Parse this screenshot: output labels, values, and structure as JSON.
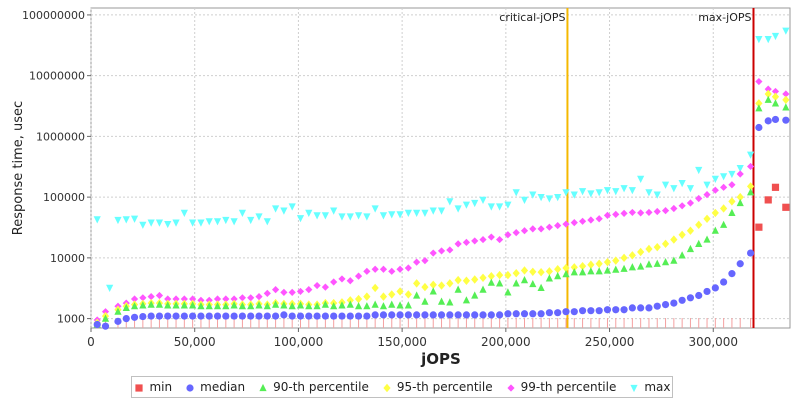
{
  "chart_data": {
    "type": "scatter",
    "xlabel": "jOPS",
    "ylabel": "Response time, usec",
    "xlim": [
      0,
      337000
    ],
    "ylim": [
      700,
      130000000
    ],
    "yscale": "log",
    "x_ticks": [
      0,
      50000,
      100000,
      150000,
      200000,
      250000,
      300000
    ],
    "x_tick_labels": [
      "0",
      "50,000",
      "100,000",
      "150,000",
      "200,000",
      "250,000",
      "300,000"
    ],
    "y_ticks": [
      1000,
      10000,
      100000,
      1000000,
      10000000,
      100000000
    ],
    "y_tick_labels": [
      "1000",
      "10000",
      "100000",
      "1000000",
      "10000000",
      "100000000"
    ],
    "grid": true,
    "legend_position": "bottom",
    "vlines": [
      {
        "label": "critical-jOPS",
        "x": 229700,
        "color": "#f5b800"
      },
      {
        "label": "max-jOPS",
        "x": 319400,
        "color": "#cc0000"
      }
    ],
    "series": [
      {
        "name": "min",
        "marker": "square",
        "color": "#f05050",
        "x": [
          322000,
          326500,
          330000,
          335000
        ],
        "y": [
          32000,
          90000,
          145000,
          68000
        ]
      },
      {
        "name": "median",
        "marker": "circle",
        "color": "#6666ff",
        "x": [
          3000,
          7000,
          13000,
          17000,
          21000,
          25000,
          29000,
          33000,
          37000,
          41000,
          45000,
          49000,
          53000,
          57000,
          61000,
          65000,
          69000,
          73000,
          77000,
          81000,
          85000,
          89000,
          93000,
          97000,
          101000,
          105000,
          109000,
          113000,
          117000,
          121000,
          125000,
          129000,
          133000,
          137000,
          141000,
          145000,
          149000,
          153000,
          157000,
          161000,
          165000,
          169000,
          173000,
          177000,
          181000,
          185000,
          189000,
          193000,
          197000,
          201000,
          205000,
          209000,
          213000,
          217000,
          221000,
          225000,
          229000,
          233000,
          237000,
          241000,
          245000,
          249000,
          253000,
          257000,
          261000,
          265000,
          269000,
          273000,
          277000,
          281000,
          285000,
          289000,
          293000,
          297000,
          301000,
          305000,
          309000,
          313000,
          318000,
          322000,
          326500,
          330000,
          335000
        ],
        "y": [
          800,
          750,
          900,
          1000,
          1050,
          1080,
          1100,
          1100,
          1100,
          1100,
          1100,
          1100,
          1100,
          1100,
          1100,
          1100,
          1100,
          1100,
          1100,
          1100,
          1100,
          1100,
          1150,
          1100,
          1100,
          1100,
          1100,
          1100,
          1100,
          1100,
          1100,
          1100,
          1100,
          1150,
          1150,
          1150,
          1150,
          1150,
          1150,
          1150,
          1150,
          1150,
          1150,
          1150,
          1150,
          1150,
          1150,
          1150,
          1150,
          1200,
          1200,
          1200,
          1200,
          1200,
          1250,
          1250,
          1300,
          1300,
          1350,
          1350,
          1350,
          1400,
          1400,
          1400,
          1500,
          1500,
          1500,
          1600,
          1700,
          1800,
          2000,
          2200,
          2400,
          2800,
          3200,
          4000,
          5500,
          8000,
          12000,
          1400000,
          1800000,
          1900000,
          1850000
        ]
      },
      {
        "name": "90-th percentile",
        "marker": "triangle-up",
        "color": "#55ee55",
        "x": [
          3000,
          7000,
          13000,
          17000,
          21000,
          25000,
          29000,
          33000,
          37000,
          41000,
          45000,
          49000,
          53000,
          57000,
          61000,
          65000,
          69000,
          73000,
          77000,
          81000,
          85000,
          89000,
          93000,
          97000,
          101000,
          105000,
          109000,
          113000,
          117000,
          121000,
          125000,
          129000,
          133000,
          137000,
          141000,
          145000,
          149000,
          153000,
          157000,
          161000,
          165000,
          169000,
          173000,
          177000,
          181000,
          185000,
          189000,
          193000,
          197000,
          201000,
          205000,
          209000,
          213000,
          217000,
          221000,
          225000,
          229000,
          233000,
          237000,
          241000,
          245000,
          249000,
          253000,
          257000,
          261000,
          265000,
          269000,
          273000,
          277000,
          281000,
          285000,
          289000,
          293000,
          297000,
          301000,
          305000,
          309000,
          313000,
          318000,
          322000,
          326500,
          330000,
          335000
        ],
        "y": [
          800,
          1000,
          1300,
          1500,
          1600,
          1650,
          1700,
          1700,
          1650,
          1650,
          1650,
          1650,
          1600,
          1600,
          1600,
          1600,
          1650,
          1600,
          1600,
          1650,
          1600,
          1700,
          1650,
          1600,
          1650,
          1600,
          1600,
          1700,
          1600,
          1650,
          1700,
          1600,
          1600,
          1700,
          1600,
          1700,
          1650,
          1650,
          2400,
          1900,
          2800,
          1900,
          1850,
          3000,
          2000,
          2400,
          3000,
          3900,
          3800,
          2700,
          3800,
          4300,
          3700,
          3200,
          4600,
          5000,
          5400,
          5800,
          5800,
          6000,
          6000,
          6200,
          6400,
          6600,
          7000,
          7200,
          7800,
          8000,
          8500,
          9000,
          11000,
          14000,
          17000,
          20000,
          28000,
          35000,
          55000,
          80000,
          120000,
          2900000,
          4000000,
          3500000,
          3000000
        ]
      },
      {
        "name": "95-th percentile",
        "marker": "diamond",
        "color": "#ffff44",
        "x": [
          3000,
          7000,
          13000,
          17000,
          21000,
          25000,
          29000,
          33000,
          37000,
          41000,
          45000,
          49000,
          53000,
          57000,
          61000,
          65000,
          69000,
          73000,
          77000,
          81000,
          85000,
          89000,
          93000,
          97000,
          101000,
          105000,
          109000,
          113000,
          117000,
          121000,
          125000,
          129000,
          133000,
          137000,
          141000,
          145000,
          149000,
          153000,
          157000,
          161000,
          165000,
          169000,
          173000,
          177000,
          181000,
          185000,
          189000,
          193000,
          197000,
          201000,
          205000,
          209000,
          213000,
          217000,
          221000,
          225000,
          229000,
          233000,
          237000,
          241000,
          245000,
          249000,
          253000,
          257000,
          261000,
          265000,
          269000,
          273000,
          277000,
          281000,
          285000,
          289000,
          293000,
          297000,
          301000,
          305000,
          309000,
          313000,
          318000,
          322000,
          326500,
          330000,
          335000
        ],
        "y": [
          850,
          1100,
          1400,
          1600,
          1700,
          1750,
          1800,
          1800,
          1750,
          1750,
          1750,
          1750,
          1700,
          1700,
          1700,
          1700,
          1750,
          1700,
          1700,
          1750,
          1700,
          1800,
          1750,
          1750,
          1750,
          1700,
          1700,
          1800,
          1800,
          1850,
          2000,
          2100,
          2300,
          3200,
          2300,
          2500,
          2800,
          2500,
          3800,
          3300,
          3600,
          3500,
          3800,
          4300,
          4200,
          4400,
          4700,
          5000,
          5200,
          5200,
          5600,
          6200,
          5900,
          5800,
          6000,
          6500,
          6800,
          7000,
          7300,
          7700,
          8000,
          8500,
          9000,
          10000,
          11000,
          12500,
          14000,
          15000,
          17000,
          20000,
          24000,
          28000,
          35000,
          44000,
          55000,
          65000,
          85000,
          100000,
          150000,
          3500000,
          5000000,
          4500000,
          4000000
        ]
      },
      {
        "name": "99-th percentile",
        "marker": "square-rotated",
        "color": "#ff55ff",
        "x": [
          3000,
          7000,
          13000,
          17000,
          21000,
          25000,
          29000,
          33000,
          37000,
          41000,
          45000,
          49000,
          53000,
          57000,
          61000,
          65000,
          69000,
          73000,
          77000,
          81000,
          85000,
          89000,
          93000,
          97000,
          101000,
          105000,
          109000,
          113000,
          117000,
          121000,
          125000,
          129000,
          133000,
          137000,
          141000,
          145000,
          149000,
          153000,
          157000,
          161000,
          165000,
          169000,
          173000,
          177000,
          181000,
          185000,
          189000,
          193000,
          197000,
          201000,
          205000,
          209000,
          213000,
          217000,
          221000,
          225000,
          229000,
          233000,
          237000,
          241000,
          245000,
          249000,
          253000,
          257000,
          261000,
          265000,
          269000,
          273000,
          277000,
          281000,
          285000,
          289000,
          293000,
          297000,
          301000,
          305000,
          309000,
          313000,
          318000,
          322000,
          326500,
          330000,
          335000
        ],
        "y": [
          950,
          1300,
          1600,
          1800,
          2100,
          2200,
          2300,
          2400,
          2100,
          2100,
          2100,
          2100,
          2000,
          2000,
          2100,
          2100,
          2100,
          2200,
          2200,
          2300,
          2600,
          3000,
          2700,
          2700,
          2800,
          3000,
          3500,
          3300,
          4000,
          4500,
          4200,
          5000,
          6000,
          6500,
          6500,
          6000,
          6500,
          6800,
          8500,
          9000,
          12000,
          13000,
          13500,
          17000,
          18000,
          19000,
          20000,
          22000,
          20000,
          24000,
          26000,
          28000,
          30000,
          30000,
          32000,
          34000,
          36000,
          38000,
          40000,
          42000,
          44000,
          50000,
          52000,
          54000,
          56000,
          55000,
          56000,
          58000,
          60000,
          65000,
          72000,
          80000,
          95000,
          110000,
          130000,
          145000,
          160000,
          240000,
          320000,
          8000000,
          6000000,
          5500000,
          5000000
        ]
      },
      {
        "name": "max",
        "marker": "triangle-down",
        "color": "#66ffff",
        "x": [
          3000,
          9000,
          13000,
          17000,
          21000,
          25000,
          29000,
          33000,
          37000,
          41000,
          45000,
          49000,
          53000,
          57000,
          61000,
          65000,
          69000,
          73000,
          77000,
          81000,
          85000,
          89000,
          93000,
          97000,
          101000,
          105000,
          109000,
          113000,
          117000,
          121000,
          125000,
          129000,
          133000,
          137000,
          141000,
          145000,
          149000,
          153000,
          157000,
          161000,
          165000,
          169000,
          173000,
          177000,
          181000,
          185000,
          189000,
          193000,
          197000,
          201000,
          205000,
          209000,
          213000,
          217000,
          221000,
          225000,
          229000,
          233000,
          237000,
          241000,
          245000,
          249000,
          253000,
          257000,
          261000,
          265000,
          269000,
          273000,
          277000,
          281000,
          285000,
          289000,
          293000,
          297000,
          301000,
          305000,
          309000,
          313000,
          318000,
          322000,
          326500,
          330000,
          335000
        ],
        "y": [
          43000,
          3200,
          42000,
          43000,
          44000,
          35000,
          38000,
          38000,
          36000,
          38000,
          55000,
          38000,
          38000,
          40000,
          40000,
          42000,
          40000,
          55000,
          42000,
          48000,
          40000,
          65000,
          60000,
          70000,
          45000,
          55000,
          50000,
          50000,
          60000,
          48000,
          48000,
          50000,
          48000,
          65000,
          50000,
          52000,
          52000,
          55000,
          55000,
          55000,
          60000,
          60000,
          85000,
          65000,
          75000,
          80000,
          90000,
          70000,
          70000,
          75000,
          120000,
          90000,
          110000,
          100000,
          95000,
          100000,
          120000,
          110000,
          125000,
          115000,
          120000,
          130000,
          125000,
          140000,
          130000,
          200000,
          120000,
          110000,
          160000,
          140000,
          170000,
          140000,
          280000,
          160000,
          200000,
          220000,
          240000,
          300000,
          500000,
          40000000,
          40000000,
          45000000,
          55000000
        ]
      }
    ]
  }
}
